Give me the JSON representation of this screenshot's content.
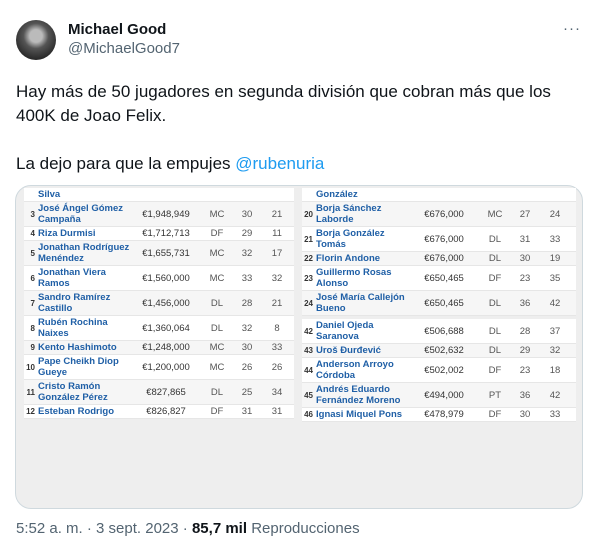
{
  "tweet": {
    "author_name": "Michael Good",
    "author_handle": "@MichaelGood7",
    "more_icon": "more-horizontal-icon",
    "text_line1": "Hay más de 50 jugadores en segunda división que cobran más que los 400K de Joao Felix.",
    "text_line2": "La dejo para que la empujes ",
    "mention": "@rubenuria",
    "time": "5:52 a. m.",
    "date": "3 sept. 2023",
    "views": "85,7 mil",
    "views_label": "Reproducciones",
    "mention_color": "#1d9bf0"
  },
  "table_left": [
    {
      "rank": "",
      "name": "Silva",
      "salary": "",
      "pos": "",
      "age": "",
      "games": ""
    },
    {
      "rank": "3",
      "name": "José Ángel Gómez Campaña",
      "salary": "€1,948,949",
      "pos": "MC",
      "age": "30",
      "games": "21"
    },
    {
      "rank": "4",
      "name": "Riza Durmisi",
      "salary": "€1,712,713",
      "pos": "DF",
      "age": "29",
      "games": "11"
    },
    {
      "rank": "5",
      "name": "Jonathan Rodríguez Menéndez",
      "salary": "€1,655,731",
      "pos": "MC",
      "age": "32",
      "games": "17"
    },
    {
      "rank": "6",
      "name": "Jonathan Viera Ramos",
      "salary": "€1,560,000",
      "pos": "MC",
      "age": "33",
      "games": "32"
    },
    {
      "rank": "7",
      "name": "Sandro Ramírez Castillo",
      "salary": "€1,456,000",
      "pos": "DL",
      "age": "28",
      "games": "21"
    },
    {
      "rank": "8",
      "name": "Rubén Rochina Naixes",
      "salary": "€1,360,064",
      "pos": "DL",
      "age": "32",
      "games": "8"
    },
    {
      "rank": "9",
      "name": "Kento Hashimoto",
      "salary": "€1,248,000",
      "pos": "MC",
      "age": "30",
      "games": "33"
    },
    {
      "rank": "10",
      "name": "Pape Cheikh Diop Gueye",
      "salary": "€1,200,000",
      "pos": "MC",
      "age": "26",
      "games": "26"
    },
    {
      "rank": "11",
      "name": "Cristo Ramón González Pérez",
      "salary": "€827,865",
      "pos": "DL",
      "age": "25",
      "games": "34"
    },
    {
      "rank": "12",
      "name": "Esteban Rodrigo",
      "salary": "€826,827",
      "pos": "DF",
      "age": "31",
      "games": "31"
    }
  ],
  "table_right_top": [
    {
      "rank": "",
      "name": "González",
      "salary": "",
      "pos": "",
      "age": "",
      "games": ""
    },
    {
      "rank": "20",
      "name": "Borja Sánchez Laborde",
      "salary": "€676,000",
      "pos": "MC",
      "age": "27",
      "games": "24"
    },
    {
      "rank": "21",
      "name": "Borja González Tomás",
      "salary": "€676,000",
      "pos": "DL",
      "age": "31",
      "games": "33"
    },
    {
      "rank": "22",
      "name": "Florin Andone",
      "salary": "€676,000",
      "pos": "DL",
      "age": "30",
      "games": "19"
    },
    {
      "rank": "23",
      "name": "Guillermo Rosas Alonso",
      "salary": "€650,465",
      "pos": "DF",
      "age": "23",
      "games": "35"
    },
    {
      "rank": "24",
      "name": "José María Callejón Bueno",
      "salary": "€650,465",
      "pos": "DL",
      "age": "36",
      "games": "42"
    }
  ],
  "table_right_bottom": [
    {
      "rank": "42",
      "name": "Daniel Ojeda Saranova",
      "salary": "€506,688",
      "pos": "DL",
      "age": "28",
      "games": "37"
    },
    {
      "rank": "43",
      "name": "Uroš Đurđević",
      "salary": "€502,632",
      "pos": "DL",
      "age": "29",
      "games": "32"
    },
    {
      "rank": "44",
      "name": "Anderson Arroyo Córdoba",
      "salary": "€502,002",
      "pos": "DF",
      "age": "23",
      "games": "18"
    },
    {
      "rank": "45",
      "name": "Andrés Eduardo Fernández Moreno",
      "salary": "€494,000",
      "pos": "PT",
      "age": "36",
      "games": "42"
    },
    {
      "rank": "46",
      "name": "Ignasi Miquel Pons",
      "salary": "€478,979",
      "pos": "DF",
      "age": "30",
      "games": "33"
    }
  ]
}
